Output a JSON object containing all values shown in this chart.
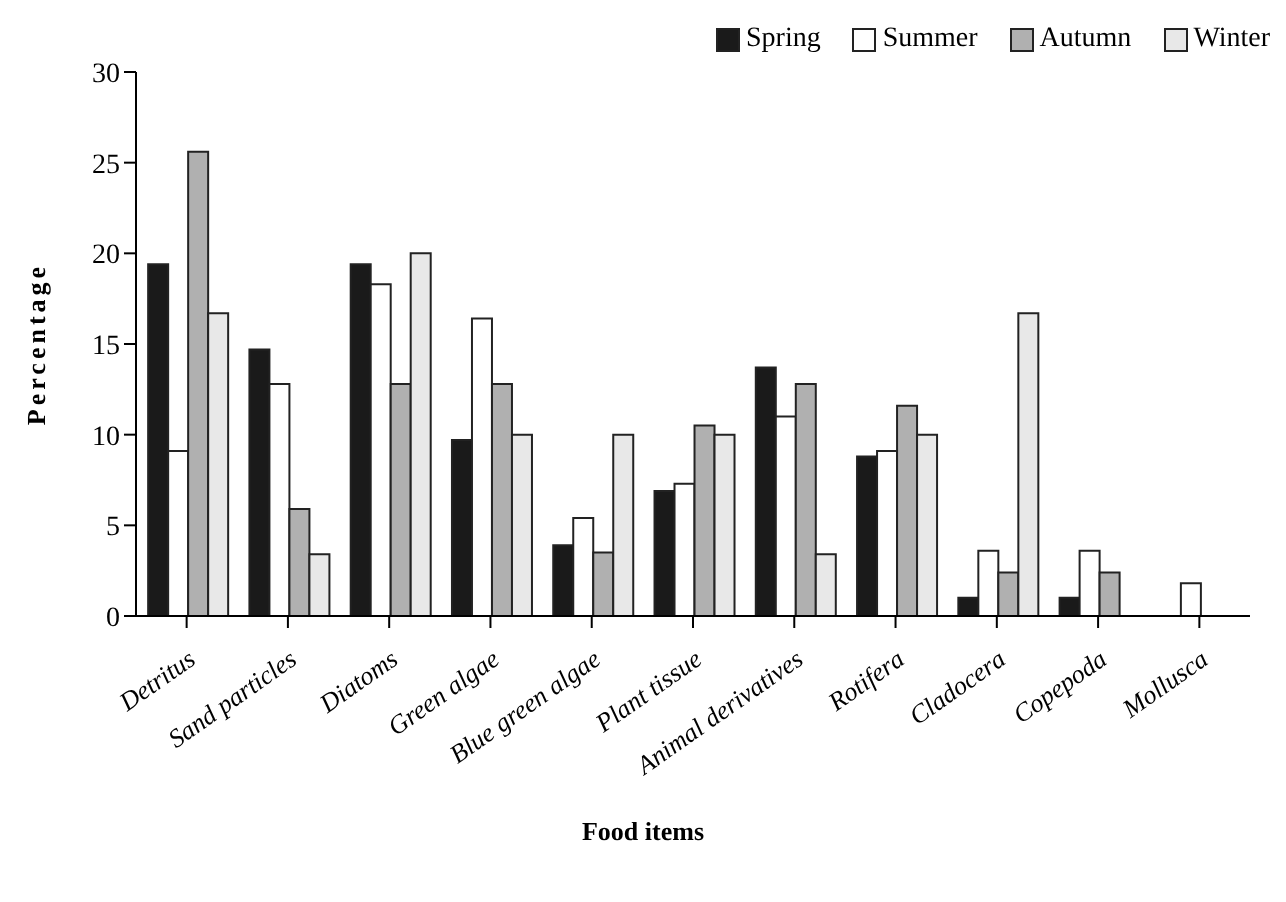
{
  "chart_data": {
    "type": "bar",
    "xlabel": "Food items",
    "ylabel": "Percentage",
    "categories": [
      "Detritus",
      "Sand particles",
      "Diatoms",
      "Green algae",
      "Blue green algae",
      "Plant tissue",
      "Animal derivatives",
      "Rotifera",
      "Cladocera",
      "Copepoda",
      "Mollusca"
    ],
    "series": [
      {
        "name": "Spring",
        "color": "#1a1a1a",
        "values": [
          19.4,
          14.7,
          19.4,
          9.7,
          3.9,
          6.9,
          13.7,
          8.8,
          1.0,
          1.0,
          null
        ]
      },
      {
        "name": "Summer",
        "color": "#ffffff",
        "values": [
          9.1,
          12.8,
          18.3,
          16.4,
          5.4,
          7.3,
          11.0,
          9.1,
          3.6,
          3.6,
          1.8
        ]
      },
      {
        "name": "Autumn",
        "color": "#b0b0b0",
        "values": [
          25.6,
          5.9,
          12.8,
          12.8,
          3.5,
          10.5,
          12.8,
          11.6,
          2.4,
          2.4,
          null
        ]
      },
      {
        "name": "Winter",
        "color": "#e8e8e8",
        "values": [
          16.7,
          3.4,
          20.0,
          10.0,
          10.0,
          10.0,
          3.4,
          10.0,
          16.7,
          null,
          null
        ]
      }
    ],
    "ylim": [
      0,
      30
    ],
    "yticks": [
      0,
      5,
      10,
      15,
      20,
      25,
      30
    ],
    "grid": false,
    "legend": "top right"
  }
}
